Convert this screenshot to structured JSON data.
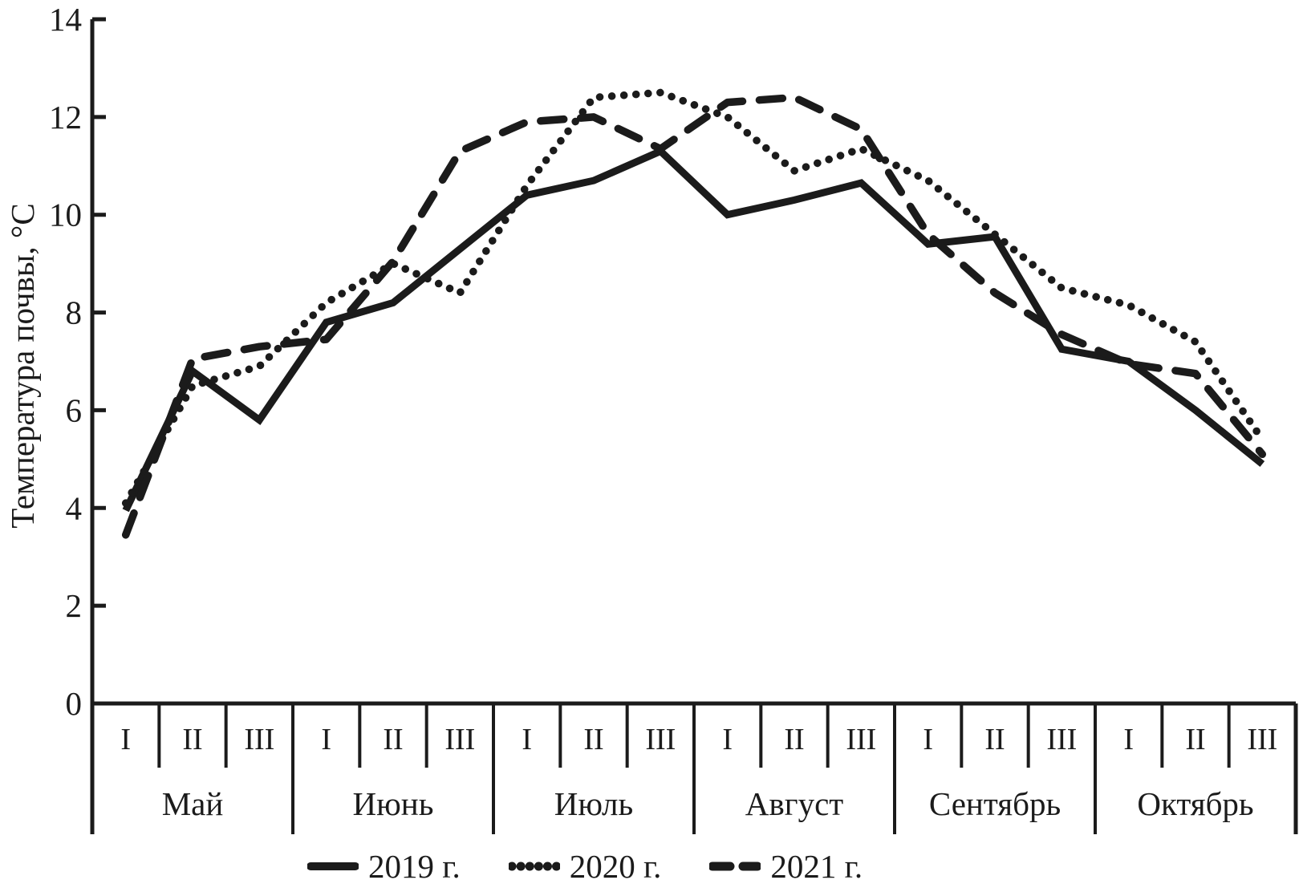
{
  "chart_data": {
    "type": "line",
    "title": "",
    "xlabel": "",
    "ylabel": "Температура почвы, °С",
    "ylim": [
      0,
      14
    ],
    "yticks": [
      0,
      2,
      4,
      6,
      8,
      10,
      12,
      14
    ],
    "grid": false,
    "legend_position": "bottom",
    "line_color": "#1b1b1b",
    "months": [
      "Май",
      "Июнь",
      "Июль",
      "Август",
      "Сентябрь",
      "Октябрь"
    ],
    "decade_labels": [
      "I",
      "II",
      "III"
    ],
    "categories": [
      "Май I",
      "Май II",
      "Май III",
      "Июнь I",
      "Июнь II",
      "Июнь III",
      "Июль I",
      "Июль II",
      "Июль III",
      "Август I",
      "Август II",
      "Август III",
      "Сентябрь I",
      "Сентябрь II",
      "Сентябрь III",
      "Октябрь I",
      "Октябрь II",
      "Октябрь III"
    ],
    "series": [
      {
        "name": "2019 г.",
        "style": "solid",
        "values": [
          3.95,
          6.8,
          5.8,
          7.8,
          8.2,
          9.3,
          10.4,
          10.7,
          11.3,
          10.0,
          10.3,
          10.65,
          9.4,
          9.55,
          7.25,
          7.0,
          6.0,
          4.9
        ]
      },
      {
        "name": "2020 г.",
        "style": "dotted",
        "values": [
          4.1,
          6.5,
          6.9,
          8.2,
          9.0,
          8.4,
          10.6,
          12.4,
          12.5,
          12.0,
          10.9,
          11.35,
          10.7,
          9.6,
          8.5,
          8.15,
          7.4,
          5.4
        ]
      },
      {
        "name": "2021 г.",
        "style": "dashed",
        "values": [
          3.45,
          7.05,
          7.3,
          7.45,
          9.05,
          11.3,
          11.9,
          12.0,
          11.35,
          12.3,
          12.4,
          11.75,
          9.6,
          8.4,
          7.55,
          6.95,
          6.75,
          5.1
        ]
      }
    ]
  }
}
